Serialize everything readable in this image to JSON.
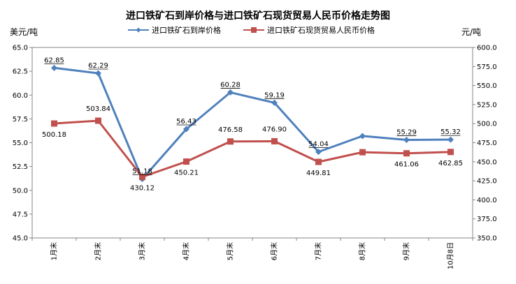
{
  "chart_data": {
    "type": "line",
    "title": "进口铁矿石到岸价格与进口铁矿石现货贸易人民币价格走势图",
    "ylabel_left": "美元/吨",
    "ylabel_right": "元/吨",
    "categories": [
      "1月末",
      "2月末",
      "3月末",
      "4月末",
      "5月末",
      "6月末",
      "7月末",
      "8月末",
      "9月末",
      "10月8日"
    ],
    "left_axis": {
      "min": 45,
      "max": 65,
      "step": 2.5,
      "ticks": [
        "45.0",
        "47.5",
        "50.0",
        "52.5",
        "55.0",
        "57.5",
        "60.0",
        "62.5",
        "65.0"
      ]
    },
    "right_axis": {
      "min": 350,
      "max": 600,
      "step": 25,
      "ticks": [
        "350.0",
        "375.0",
        "400.0",
        "425.0",
        "450.0",
        "475.0",
        "500.0",
        "525.0",
        "550.0",
        "575.0",
        "600.0"
      ]
    },
    "legend_position": "top",
    "series": [
      {
        "name": "进口铁矿石到岸价格",
        "axis": "left",
        "color": "#4f81bd",
        "marker": "diamond",
        "values": [
          62.85,
          62.29,
          51.18,
          56.43,
          60.28,
          59.19,
          54.04,
          55.7,
          55.29,
          55.32
        ],
        "labels": [
          "62.85",
          "62.29",
          "51.18",
          "56.43",
          "60.28",
          "59.19",
          "54.04",
          "",
          "55.29",
          "55.32"
        ]
      },
      {
        "name": "进口铁矿石现货贸易人民币价格",
        "axis": "right",
        "color": "#c0504d",
        "marker": "square",
        "values": [
          500.18,
          503.84,
          430.12,
          450.21,
          476.58,
          476.9,
          449.81,
          462.5,
          461.06,
          462.85
        ],
        "labels": [
          "500.18",
          "503.84",
          "430.12",
          "450.21",
          "476.58",
          "476.90",
          "449.81",
          "",
          "461.06",
          "462.85"
        ]
      }
    ]
  }
}
